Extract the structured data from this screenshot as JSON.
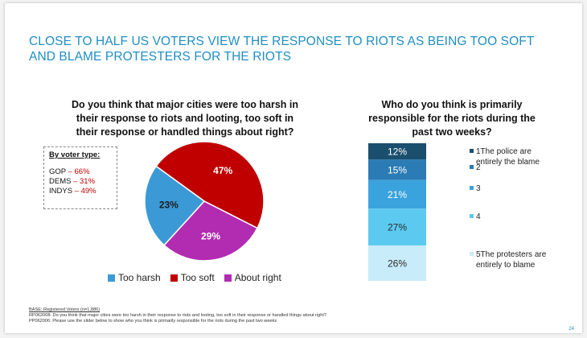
{
  "title": "Close to half US voters view the response to riots as being too soft and blame protesters for the riots",
  "pie_question": "Do you think that major cities were too harsh in their response to riots and looting, too soft in their response or handled things about right?",
  "voter_box": {
    "title": "By voter type:",
    "rows": [
      {
        "label": "GOP",
        "sep": " – ",
        "value": "66%"
      },
      {
        "label": "DEMS",
        "sep": " – ",
        "value": "31%"
      },
      {
        "label": "INDYS",
        "sep": " – ",
        "value": "49%"
      }
    ]
  },
  "bar_question": "Who do you think is primarily responsible for the riots during the past two weeks?",
  "footnote": {
    "base": "BASE: Registered Voters (n=1,886)",
    "line1": "RP062008: Do you think that major cities were too harsh in their response to riots and looting, too soft in their response or handled things about right?",
    "line2": "PP062006: Please use the slider below to show who you think is primarily responsible for the riots during the past two weeks"
  },
  "page_number": "24",
  "chart_data": [
    {
      "type": "pie",
      "categories": [
        "Too soft",
        "About right",
        "Too harsh"
      ],
      "values": [
        47,
        29,
        23
      ],
      "labels": [
        "47%",
        "29%",
        "23%"
      ],
      "colors": [
        "#c00000",
        "#b12cb1",
        "#3b9ad6"
      ],
      "legend_order": [
        "Too harsh",
        "Too soft",
        "About right"
      ],
      "legend_colors": [
        "#3b9ad6",
        "#c00000",
        "#b12cb1"
      ],
      "legend_position": "bottom"
    },
    {
      "type": "bar",
      "stacked": true,
      "categories": [
        "1The police are entirely the blame",
        "2",
        "3",
        "4",
        "5The protesters are entirely to blame"
      ],
      "values": [
        12,
        15,
        21,
        27,
        26
      ],
      "labels": [
        "12%",
        "15%",
        "21%",
        "27%",
        "26%"
      ],
      "colors": [
        "#1b4f6e",
        "#2b7bb5",
        "#3aa3dd",
        "#5ccaf0",
        "#c9ecfa"
      ],
      "label_colors": [
        "#ffffff",
        "#ffffff",
        "#ffffff",
        "#2b2b2b",
        "#2b2b2b"
      ],
      "legend_position": "right"
    }
  ]
}
